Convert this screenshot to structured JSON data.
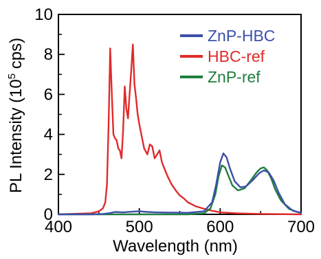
{
  "chart_data": {
    "type": "line",
    "xlabel": "Wavelength (nm)",
    "ylabel_main": "PL Intensity (10",
    "ylabel_sup": "5",
    "ylabel_tail": " cps)",
    "xlim": [
      400,
      700
    ],
    "ylim": [
      0,
      10
    ],
    "xticks": [
      400,
      500,
      600,
      700
    ],
    "xticks_minor": [
      450,
      550,
      650
    ],
    "yticks": [
      0,
      2,
      4,
      6,
      8,
      10
    ],
    "yticks_minor": [
      1,
      3,
      5,
      7,
      9
    ],
    "legend_position": "top-right",
    "grid": false,
    "series": [
      {
        "name": "ZnP-HBC",
        "color": "#3b4fa8",
        "x": [
          400,
          440,
          455,
          462,
          470,
          480,
          490,
          500,
          510,
          520,
          540,
          560,
          580,
          590,
          595,
          600,
          604,
          608,
          612,
          618,
          625,
          632,
          640,
          648,
          654,
          660,
          666,
          672,
          680,
          690,
          700
        ],
        "y": [
          0,
          0,
          0.02,
          0.05,
          0.12,
          0.1,
          0.13,
          0.15,
          0.12,
          0.1,
          0.09,
          0.08,
          0.15,
          0.6,
          1.5,
          2.6,
          3.05,
          2.85,
          2.3,
          1.65,
          1.35,
          1.4,
          1.7,
          2.05,
          2.2,
          2.1,
          1.7,
          1.1,
          0.5,
          0.18,
          0.08
        ]
      },
      {
        "name": "HBC-ref",
        "color": "#e02a2a",
        "x": [
          400,
          440,
          450,
          455,
          458,
          460,
          462,
          464,
          466,
          468,
          470,
          472,
          474,
          476,
          478,
          480,
          482,
          484,
          486,
          488,
          490,
          492,
          494,
          496,
          498,
          500,
          503,
          506,
          510,
          513,
          516,
          519,
          522,
          525,
          528,
          531,
          535,
          540,
          545,
          550,
          555,
          560,
          570,
          580,
          590,
          600,
          620,
          650,
          700
        ],
        "y": [
          0,
          0.05,
          0.15,
          0.3,
          0.6,
          1.5,
          4.5,
          8.3,
          6.0,
          4.0,
          3.8,
          3.7,
          3.3,
          3.2,
          2.8,
          4.2,
          6.4,
          5.3,
          4.8,
          6.0,
          7.2,
          8.5,
          6.5,
          5.8,
          5.0,
          4.5,
          3.9,
          3.3,
          3.0,
          3.5,
          3.4,
          2.8,
          3.0,
          3.2,
          2.6,
          2.3,
          1.9,
          1.5,
          1.2,
          0.95,
          0.8,
          0.6,
          0.4,
          0.28,
          0.18,
          0.1,
          0.05,
          0.02,
          0
        ]
      },
      {
        "name": "ZnP-ref",
        "color": "#1e7d3c",
        "x": [
          400,
          560,
          580,
          588,
          594,
          598,
          602,
          606,
          610,
          615,
          622,
          630,
          638,
          645,
          650,
          654,
          658,
          663,
          668,
          675,
          685,
          695,
          700
        ],
        "y": [
          0,
          0,
          0.05,
          0.3,
          1.0,
          1.9,
          2.45,
          2.35,
          1.95,
          1.45,
          1.2,
          1.3,
          1.7,
          2.1,
          2.3,
          2.35,
          2.2,
          1.8,
          1.25,
          0.7,
          0.28,
          0.12,
          0.08
        ]
      }
    ]
  }
}
